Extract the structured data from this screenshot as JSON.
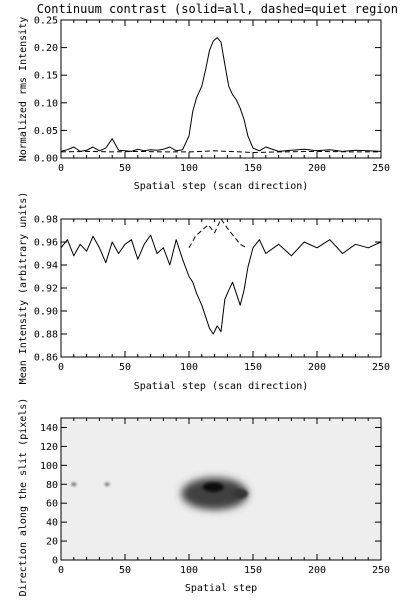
{
  "title": "Continuum contrast (solid=all, dashed=quiet region)",
  "chart_data": [
    {
      "type": "line",
      "xlabel": "Spatial step (scan direction)",
      "ylabel": "Normalized rms Intensity",
      "xlim": [
        0,
        250
      ],
      "ylim": [
        0.0,
        0.25
      ],
      "xticks": [
        "0",
        "50",
        "100",
        "150",
        "200",
        "250"
      ],
      "yticks": [
        "0.00",
        "0.05",
        "0.10",
        "0.15",
        "0.20",
        "0.25"
      ],
      "grid": false,
      "series": [
        {
          "style": "solid",
          "x": [
            0,
            5,
            10,
            15,
            20,
            25,
            30,
            35,
            40,
            45,
            50,
            55,
            60,
            65,
            70,
            75,
            80,
            85,
            90,
            95,
            100,
            103,
            106,
            110,
            113,
            116,
            119,
            122,
            125,
            128,
            131,
            134,
            137,
            140,
            143,
            146,
            150,
            155,
            160,
            170,
            180,
            190,
            200,
            210,
            220,
            230,
            240,
            250
          ],
          "y": [
            0.012,
            0.015,
            0.02,
            0.012,
            0.014,
            0.02,
            0.013,
            0.018,
            0.035,
            0.014,
            0.013,
            0.012,
            0.016,
            0.013,
            0.015,
            0.014,
            0.016,
            0.02,
            0.013,
            0.015,
            0.04,
            0.085,
            0.11,
            0.13,
            0.16,
            0.195,
            0.212,
            0.218,
            0.21,
            0.17,
            0.13,
            0.115,
            0.105,
            0.09,
            0.07,
            0.04,
            0.018,
            0.013,
            0.02,
            0.012,
            0.014,
            0.016,
            0.013,
            0.015,
            0.012,
            0.014,
            0.013,
            0.012
          ]
        },
        {
          "style": "dashed",
          "x": [
            0,
            20,
            40,
            60,
            80,
            100,
            110,
            120,
            130,
            140,
            150,
            170,
            200,
            230,
            250
          ],
          "y": [
            0.011,
            0.012,
            0.011,
            0.012,
            0.011,
            0.011,
            0.012,
            0.013,
            0.012,
            0.011,
            0.01,
            0.011,
            0.012,
            0.011,
            0.011
          ]
        }
      ]
    },
    {
      "type": "line",
      "xlabel": "Spatial step (scan direction)",
      "ylabel": "Mean Intensity (arbitrary units)",
      "xlim": [
        0,
        250
      ],
      "ylim": [
        0.86,
        0.98
      ],
      "xticks": [
        "0",
        "50",
        "100",
        "150",
        "200",
        "250"
      ],
      "yticks": [
        "0.86",
        "0.88",
        "0.90",
        "0.92",
        "0.94",
        "0.96",
        "0.98"
      ],
      "grid": false,
      "series": [
        {
          "style": "solid",
          "x": [
            0,
            5,
            10,
            15,
            20,
            25,
            30,
            35,
            40,
            45,
            50,
            55,
            60,
            65,
            70,
            75,
            80,
            85,
            90,
            95,
            100,
            103,
            106,
            110,
            113,
            116,
            119,
            122,
            125,
            128,
            131,
            134,
            137,
            140,
            143,
            146,
            150,
            155,
            160,
            170,
            180,
            190,
            200,
            210,
            220,
            230,
            240,
            250
          ],
          "y": [
            0.955,
            0.962,
            0.948,
            0.958,
            0.952,
            0.965,
            0.955,
            0.942,
            0.96,
            0.95,
            0.958,
            0.962,
            0.945,
            0.958,
            0.966,
            0.95,
            0.955,
            0.94,
            0.962,
            0.945,
            0.93,
            0.925,
            0.915,
            0.905,
            0.895,
            0.885,
            0.88,
            0.887,
            0.882,
            0.91,
            0.918,
            0.925,
            0.915,
            0.905,
            0.918,
            0.938,
            0.955,
            0.962,
            0.95,
            0.958,
            0.948,
            0.96,
            0.955,
            0.962,
            0.95,
            0.958,
            0.955,
            0.96
          ]
        },
        {
          "style": "dashed",
          "x": [
            100,
            105,
            110,
            115,
            120,
            125,
            130,
            135,
            140,
            145
          ],
          "y": [
            0.955,
            0.965,
            0.97,
            0.975,
            0.968,
            0.98,
            0.972,
            0.965,
            0.958,
            0.955
          ]
        }
      ]
    },
    {
      "type": "heatmap",
      "xlabel": "Spatial step",
      "ylabel": "Direction along the slit (pixels)",
      "xlim": [
        0,
        250
      ],
      "ylim": [
        0,
        150
      ],
      "xticks": [
        "0",
        "50",
        "100",
        "150",
        "200",
        "250"
      ],
      "yticks": [
        "0",
        "20",
        "40",
        "60",
        "80",
        "100",
        "120",
        "140"
      ],
      "colormap": "grayscale",
      "features": [
        {
          "x": 120,
          "y": 70,
          "rx": 26,
          "ry": 17,
          "level": 0.75
        },
        {
          "x": 119,
          "y": 77,
          "rx": 8,
          "ry": 5,
          "level": 1.0
        },
        {
          "x": 140,
          "y": 70,
          "rx": 6,
          "ry": 5,
          "level": 0.8
        },
        {
          "x": 10,
          "y": 80,
          "rx": 2,
          "ry": 2,
          "level": 0.55
        },
        {
          "x": 36,
          "y": 80,
          "rx": 2,
          "ry": 2,
          "level": 0.5
        }
      ]
    }
  ]
}
